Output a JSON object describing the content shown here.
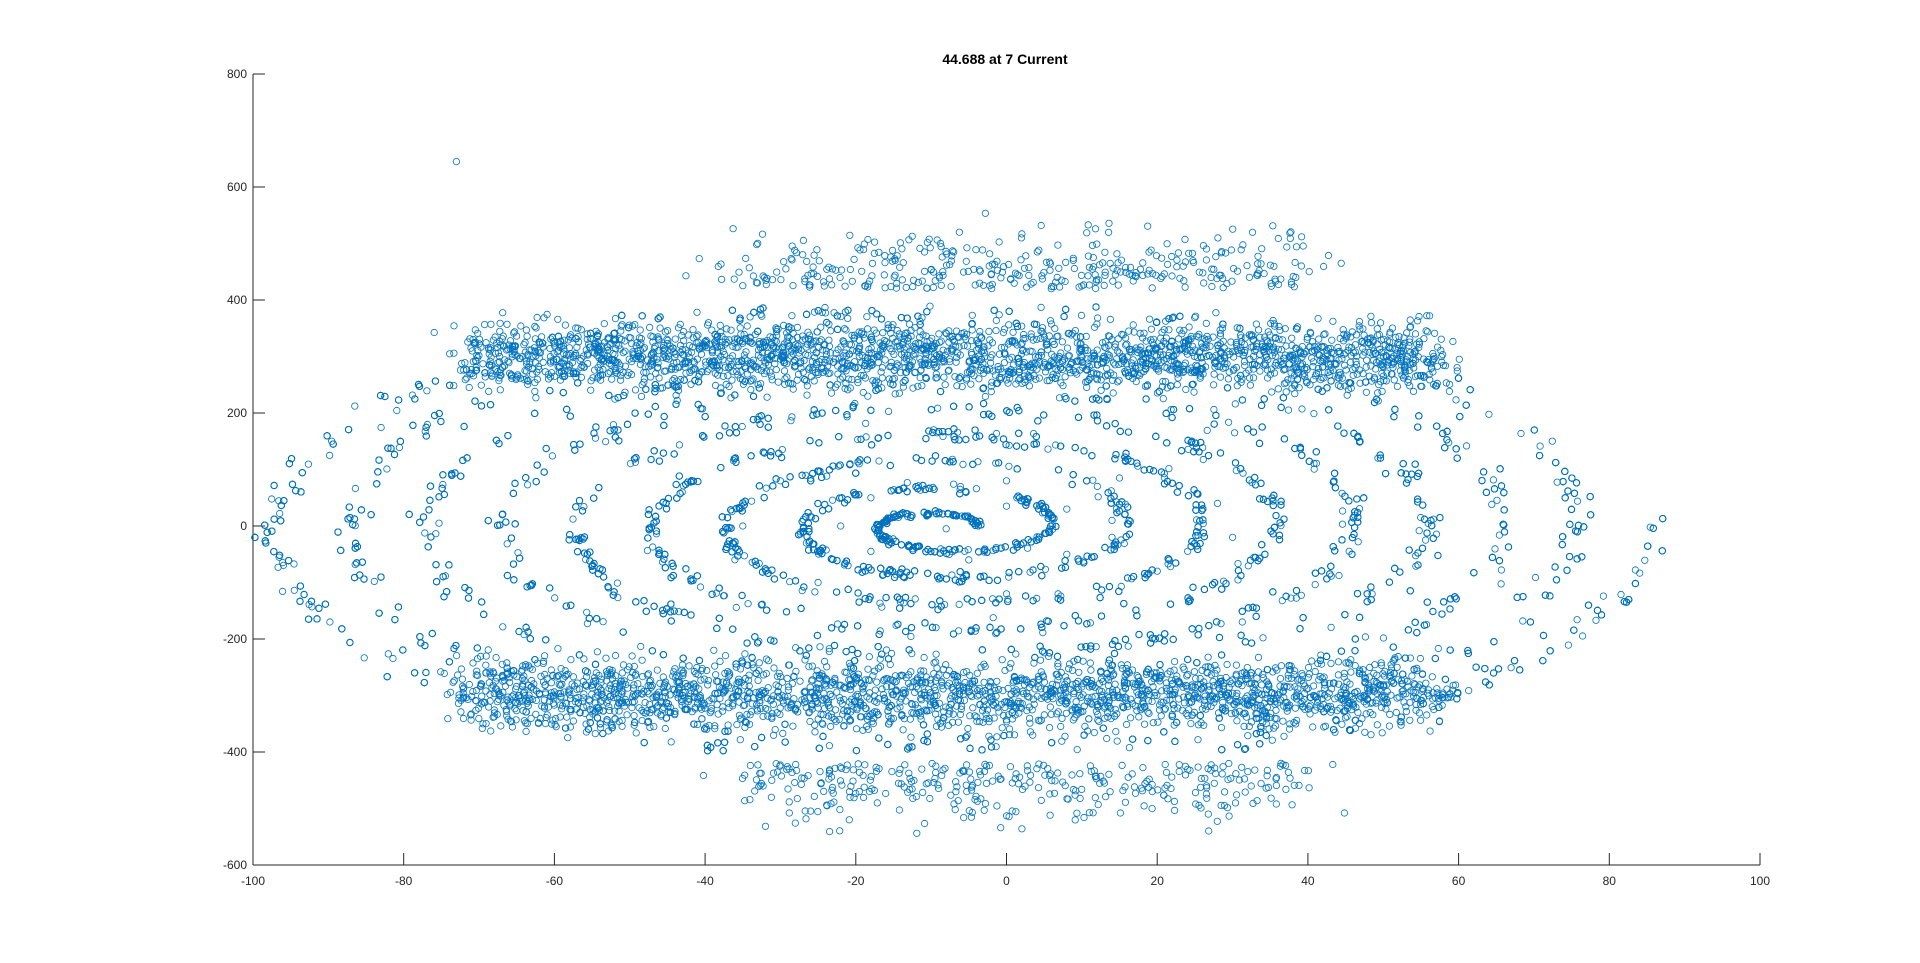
{
  "window": {
    "title": "44.688 at 7 Current"
  },
  "colors": {
    "marker": "#0072BD",
    "axis": "#262626",
    "background": "#ffffff"
  },
  "chart_data": {
    "type": "scatter",
    "title": "44.688 at 7 Current",
    "xlabel": "",
    "ylabel": "",
    "xlim": [
      -100,
      100
    ],
    "ylim": [
      -600,
      800
    ],
    "xticks": [
      -100,
      -80,
      -60,
      -40,
      -20,
      0,
      20,
      40,
      60,
      80,
      100
    ],
    "yticks": [
      -600,
      -400,
      -200,
      0,
      200,
      400,
      600,
      800
    ],
    "grid": false,
    "legend": "none",
    "marker": "open-circle",
    "description_of_data": "Dense spiral of points centered near (-8, 0), outer envelope reaching x from about -99 to 83 and y from about -570 to 580, with dense bands near y = +/-300; isolated outlier near (-73, 645).",
    "series": [
      {
        "values_sample": [
          {
            "x": -8,
            "y": -5
          },
          {
            "x": -5,
            "y": 15
          },
          {
            "x": 0,
            "y": 35
          },
          {
            "x": 8,
            "y": 30
          },
          {
            "x": 14,
            "y": 10
          },
          {
            "x": 14,
            "y": -20
          },
          {
            "x": 8,
            "y": -50
          },
          {
            "x": -5,
            "y": -60
          },
          {
            "x": -18,
            "y": -45
          },
          {
            "x": -22,
            "y": 0
          },
          {
            "x": -18,
            "y": 50
          },
          {
            "x": 0,
            "y": 80
          },
          {
            "x": 15,
            "y": 85
          },
          {
            "x": 28,
            "y": 40
          },
          {
            "x": 30,
            "y": -20
          },
          {
            "x": 20,
            "y": -80
          },
          {
            "x": 0,
            "y": -120
          },
          {
            "x": -25,
            "y": -100
          },
          {
            "x": -35,
            "y": 0
          },
          {
            "x": -30,
            "y": 80
          },
          {
            "x": -73,
            "y": 645
          }
        ]
      }
    ]
  }
}
